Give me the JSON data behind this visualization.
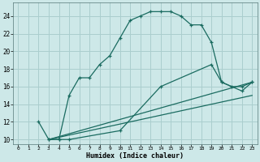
{
  "xlabel": "Humidex (Indice chaleur)",
  "background_color": "#cde8e8",
  "grid_color": "#aacece",
  "line_color": "#1a6b60",
  "xlim": [
    -0.5,
    23.5
  ],
  "ylim": [
    9.5,
    25.5
  ],
  "yticks": [
    10,
    12,
    14,
    16,
    18,
    20,
    22,
    24
  ],
  "xticks": [
    0,
    1,
    2,
    3,
    4,
    5,
    6,
    7,
    8,
    9,
    10,
    11,
    12,
    13,
    14,
    15,
    16,
    17,
    18,
    19,
    20,
    21,
    22,
    23
  ],
  "line1_x": [
    2,
    3,
    4,
    5,
    6,
    7,
    8,
    9,
    10,
    11,
    12,
    13,
    14,
    15,
    16,
    17,
    18,
    19,
    20,
    21,
    22,
    23
  ],
  "line1_y": [
    12,
    10,
    10,
    15,
    17,
    17,
    18.5,
    19.5,
    21.5,
    23.5,
    24.0,
    24.5,
    24.5,
    24.5,
    24.0,
    23.0,
    23.0,
    21.0,
    16.5,
    16.0,
    16.0,
    16.5
  ],
  "line2_x": [
    3,
    4,
    5,
    10,
    14,
    19,
    20,
    22,
    23
  ],
  "line2_y": [
    10,
    10,
    10,
    11.0,
    16.0,
    18.5,
    16.5,
    15.5,
    16.5
  ],
  "line3_x": [
    3,
    23
  ],
  "line3_y": [
    10,
    16.5
  ],
  "line4_x": [
    3,
    23
  ],
  "line4_y": [
    10,
    15.0
  ]
}
